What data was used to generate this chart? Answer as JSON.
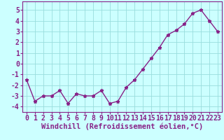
{
  "x": [
    0,
    1,
    2,
    3,
    4,
    5,
    6,
    7,
    8,
    9,
    10,
    11,
    12,
    13,
    14,
    15,
    16,
    17,
    18,
    19,
    20,
    21,
    22,
    23
  ],
  "y": [
    -1.5,
    -3.5,
    -3.0,
    -3.0,
    -2.5,
    -3.7,
    -2.8,
    -3.0,
    -3.0,
    -2.5,
    -3.7,
    -3.5,
    -2.2,
    -1.5,
    -0.5,
    0.5,
    1.5,
    2.7,
    3.1,
    3.7,
    4.7,
    5.0,
    4.0,
    3.0
  ],
  "line_color": "#882288",
  "marker": "*",
  "marker_size": 3.5,
  "bg_color": "#CCFFFF",
  "grid_color": "#99DDDD",
  "xlabel": "Windchill (Refroidissement éolien,°C)",
  "xlim": [
    -0.5,
    23.5
  ],
  "ylim": [
    -4.5,
    5.8
  ],
  "yticks": [
    -4,
    -3,
    -2,
    -1,
    0,
    1,
    2,
    3,
    4,
    5
  ],
  "xticks": [
    0,
    1,
    2,
    3,
    4,
    5,
    6,
    7,
    8,
    9,
    10,
    11,
    12,
    13,
    14,
    15,
    16,
    17,
    18,
    19,
    20,
    21,
    22,
    23
  ],
  "xlabel_fontsize": 7.5,
  "tick_fontsize": 7.0,
  "line_width": 1.0,
  "spine_color": "#882288",
  "text_color": "#882288"
}
